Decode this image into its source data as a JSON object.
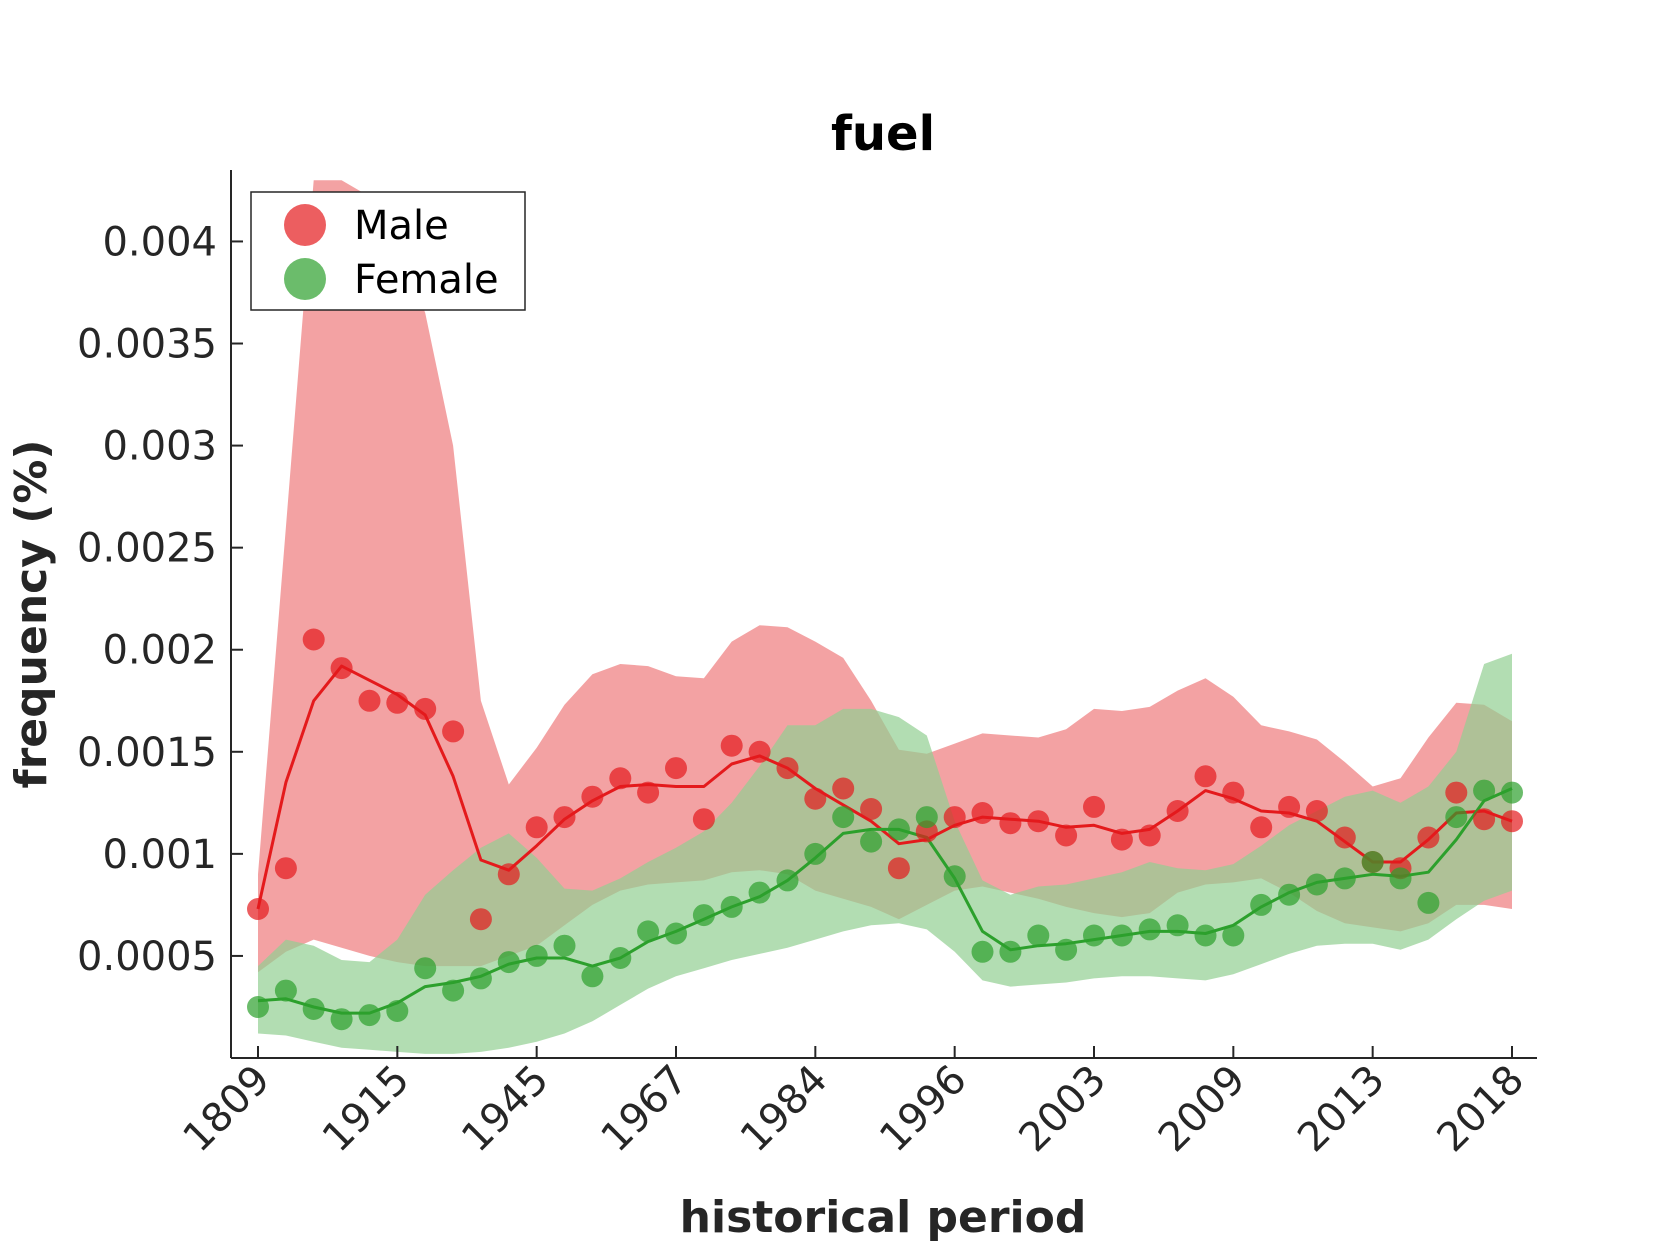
{
  "chart_data": {
    "type": "line",
    "title": "fuel",
    "xlabel": "historical period",
    "ylabel": "frequency (%)",
    "ylim": [
      0.0,
      0.00435
    ],
    "yticks": [
      0.0005,
      0.001,
      0.0015,
      0.002,
      0.0025,
      0.003,
      0.0035,
      0.004
    ],
    "ytick_labels": [
      "0.0005",
      "0.001",
      "0.0015",
      "0.002",
      "0.0025",
      "0.003",
      "0.0035",
      "0.004"
    ],
    "xticks_index": [
      0,
      5,
      10,
      15,
      20,
      25,
      30,
      35,
      40,
      45
    ],
    "xtick_labels": [
      "1809",
      "1915",
      "1945",
      "1967",
      "1984",
      "1996",
      "2003",
      "2009",
      "2013",
      "2018"
    ],
    "n_points": 46,
    "legend_position": "top-left",
    "grid": false,
    "series": [
      {
        "name": "Male",
        "color": "#e41a1c",
        "band_color": "#ee7b7c",
        "points": [
          0.00073,
          0.00093,
          0.00205,
          0.00191,
          0.00175,
          0.00174,
          0.00171,
          0.0016,
          0.00068,
          0.0009,
          0.00113,
          0.00118,
          0.00128,
          0.00137,
          0.0013,
          0.00142,
          0.00117,
          0.00153,
          0.0015,
          0.00142,
          0.00127,
          0.00132,
          0.00122,
          0.00093,
          0.00111,
          0.00118,
          0.0012,
          0.00115,
          0.00116,
          0.00109,
          0.00123,
          0.00107,
          0.00109,
          0.00121,
          0.00138,
          0.0013,
          0.00113,
          0.00123,
          0.00121,
          0.00108,
          0.00096,
          0.00093,
          0.00108,
          0.0013,
          0.00117,
          0.00116
        ],
        "line": [
          0.00073,
          0.00135,
          0.00175,
          0.00192,
          0.00185,
          0.00178,
          0.00168,
          0.00138,
          0.00097,
          0.00092,
          0.00104,
          0.00117,
          0.00126,
          0.00133,
          0.00134,
          0.00133,
          0.00133,
          0.00144,
          0.00148,
          0.00142,
          0.00132,
          0.00124,
          0.00116,
          0.00105,
          0.00107,
          0.00114,
          0.00118,
          0.00117,
          0.00116,
          0.00113,
          0.00114,
          0.0011,
          0.00112,
          0.00121,
          0.00131,
          0.00127,
          0.00121,
          0.0012,
          0.00116,
          0.00106,
          0.00096,
          0.00096,
          0.00107,
          0.0012,
          0.00121,
          0.00116
        ],
        "upper": [
          0.0009,
          0.0026,
          0.0043,
          0.0043,
          0.00422,
          0.004,
          0.00365,
          0.003,
          0.00175,
          0.00134,
          0.00152,
          0.00173,
          0.00188,
          0.00193,
          0.00192,
          0.00187,
          0.00186,
          0.00204,
          0.00212,
          0.00211,
          0.00204,
          0.00196,
          0.00175,
          0.00151,
          0.00149,
          0.00154,
          0.00159,
          0.00158,
          0.00157,
          0.00161,
          0.00171,
          0.0017,
          0.00172,
          0.0018,
          0.00186,
          0.00177,
          0.00163,
          0.0016,
          0.00156,
          0.00145,
          0.00133,
          0.00137,
          0.00157,
          0.00174,
          0.00173,
          0.00165
        ],
        "lower": [
          0.00042,
          0.00052,
          0.00058,
          0.00054,
          0.0005,
          0.00047,
          0.00045,
          0.00045,
          0.00045,
          0.0005,
          0.00055,
          0.00065,
          0.00075,
          0.00082,
          0.00085,
          0.00086,
          0.00087,
          0.00091,
          0.00092,
          0.0009,
          0.00082,
          0.00078,
          0.00074,
          0.00068,
          0.00075,
          0.00082,
          0.00084,
          0.00081,
          0.00078,
          0.00074,
          0.00071,
          0.00069,
          0.00071,
          0.00081,
          0.00085,
          0.00086,
          0.00088,
          0.00081,
          0.00072,
          0.00066,
          0.00064,
          0.00062,
          0.00066,
          0.00075,
          0.00075,
          0.00073
        ]
      },
      {
        "name": "Female",
        "color": "#2ca02c",
        "band_color": "#92cf92",
        "points": [
          0.00025,
          0.00033,
          0.00024,
          0.00019,
          0.00021,
          0.00023,
          0.00044,
          0.00033,
          0.00039,
          0.00047,
          0.0005,
          0.00055,
          0.0004,
          0.00049,
          0.00062,
          0.00061,
          0.0007,
          0.00074,
          0.00081,
          0.00087,
          0.001,
          0.00118,
          0.00106,
          0.00112,
          0.00118,
          0.00089,
          0.00052,
          0.00052,
          0.0006,
          0.00053,
          0.0006,
          0.0006,
          0.00063,
          0.00065,
          0.0006,
          0.0006,
          0.00075,
          0.0008,
          0.00085,
          0.00088,
          0.00096,
          0.00088,
          0.00076,
          0.00118,
          0.00131,
          0.0013
        ],
        "line": [
          0.00028,
          0.00029,
          0.00025,
          0.00022,
          0.00022,
          0.00027,
          0.00035,
          0.00037,
          0.0004,
          0.00046,
          0.00049,
          0.00049,
          0.00045,
          0.00049,
          0.00057,
          0.00062,
          0.00068,
          0.00074,
          0.00079,
          0.00087,
          0.00098,
          0.0011,
          0.00112,
          0.00112,
          0.00108,
          0.00088,
          0.00062,
          0.00053,
          0.00055,
          0.00056,
          0.00058,
          0.0006,
          0.00062,
          0.00062,
          0.00061,
          0.00065,
          0.00074,
          0.00081,
          0.00086,
          0.00088,
          0.0009,
          0.00089,
          0.00091,
          0.00107,
          0.00126,
          0.00132
        ],
        "upper": [
          0.00045,
          0.00058,
          0.00055,
          0.00048,
          0.00047,
          0.00058,
          0.0008,
          0.00092,
          0.00103,
          0.0011,
          0.00098,
          0.00083,
          0.00082,
          0.00088,
          0.00096,
          0.00103,
          0.00111,
          0.00125,
          0.00143,
          0.00163,
          0.00163,
          0.00171,
          0.00171,
          0.00167,
          0.00158,
          0.00116,
          0.00087,
          0.0008,
          0.00084,
          0.00085,
          0.00088,
          0.00091,
          0.00096,
          0.00093,
          0.00092,
          0.00095,
          0.00104,
          0.00114,
          0.00121,
          0.00128,
          0.00131,
          0.00125,
          0.00133,
          0.0015,
          0.00193,
          0.00198
        ],
        "lower": [
          0.00012,
          0.00011,
          8e-05,
          5e-05,
          4e-05,
          3e-05,
          2e-05,
          2e-05,
          3e-05,
          5e-05,
          8e-05,
          0.00012,
          0.00018,
          0.00026,
          0.00034,
          0.0004,
          0.00044,
          0.00048,
          0.00051,
          0.00054,
          0.00058,
          0.00062,
          0.00065,
          0.00066,
          0.00063,
          0.00052,
          0.00038,
          0.00035,
          0.00036,
          0.00037,
          0.00039,
          0.0004,
          0.0004,
          0.00039,
          0.00038,
          0.00041,
          0.00046,
          0.00051,
          0.00055,
          0.00056,
          0.00056,
          0.00053,
          0.00058,
          0.00068,
          0.00077,
          0.00082
        ]
      }
    ]
  }
}
